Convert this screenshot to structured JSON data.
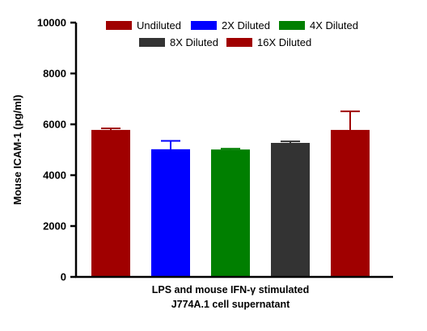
{
  "chart_data": {
    "type": "bar",
    "title": "",
    "ylabel": "Mouse ICAM-1 (pg/ml)",
    "xlabel_lines": [
      "LPS and mouse IFN-γ stimulated",
      "J774A.1 cell supernatant"
    ],
    "ylim": [
      0,
      10000
    ],
    "yticks": [
      0,
      2000,
      4000,
      6000,
      8000,
      10000
    ],
    "ytick_labels": [
      "0",
      "2000",
      "4000",
      "6000",
      "8000",
      "10000"
    ],
    "grid": false,
    "legend_position": "top",
    "series": [
      {
        "name": "Undiluted",
        "value": 5780,
        "error": 60,
        "color": "#a00000"
      },
      {
        "name": "2X Diluted",
        "value": 5020,
        "error": 330,
        "color": "#0000ff"
      },
      {
        "name": "4X Diluted",
        "value": 5010,
        "error": 30,
        "color": "#007f00"
      },
      {
        "name": "8X Diluted",
        "value": 5270,
        "error": 60,
        "color": "#333333"
      },
      {
        "name": "16X Diluted",
        "value": 5780,
        "error": 730,
        "color": "#a00000"
      }
    ]
  }
}
